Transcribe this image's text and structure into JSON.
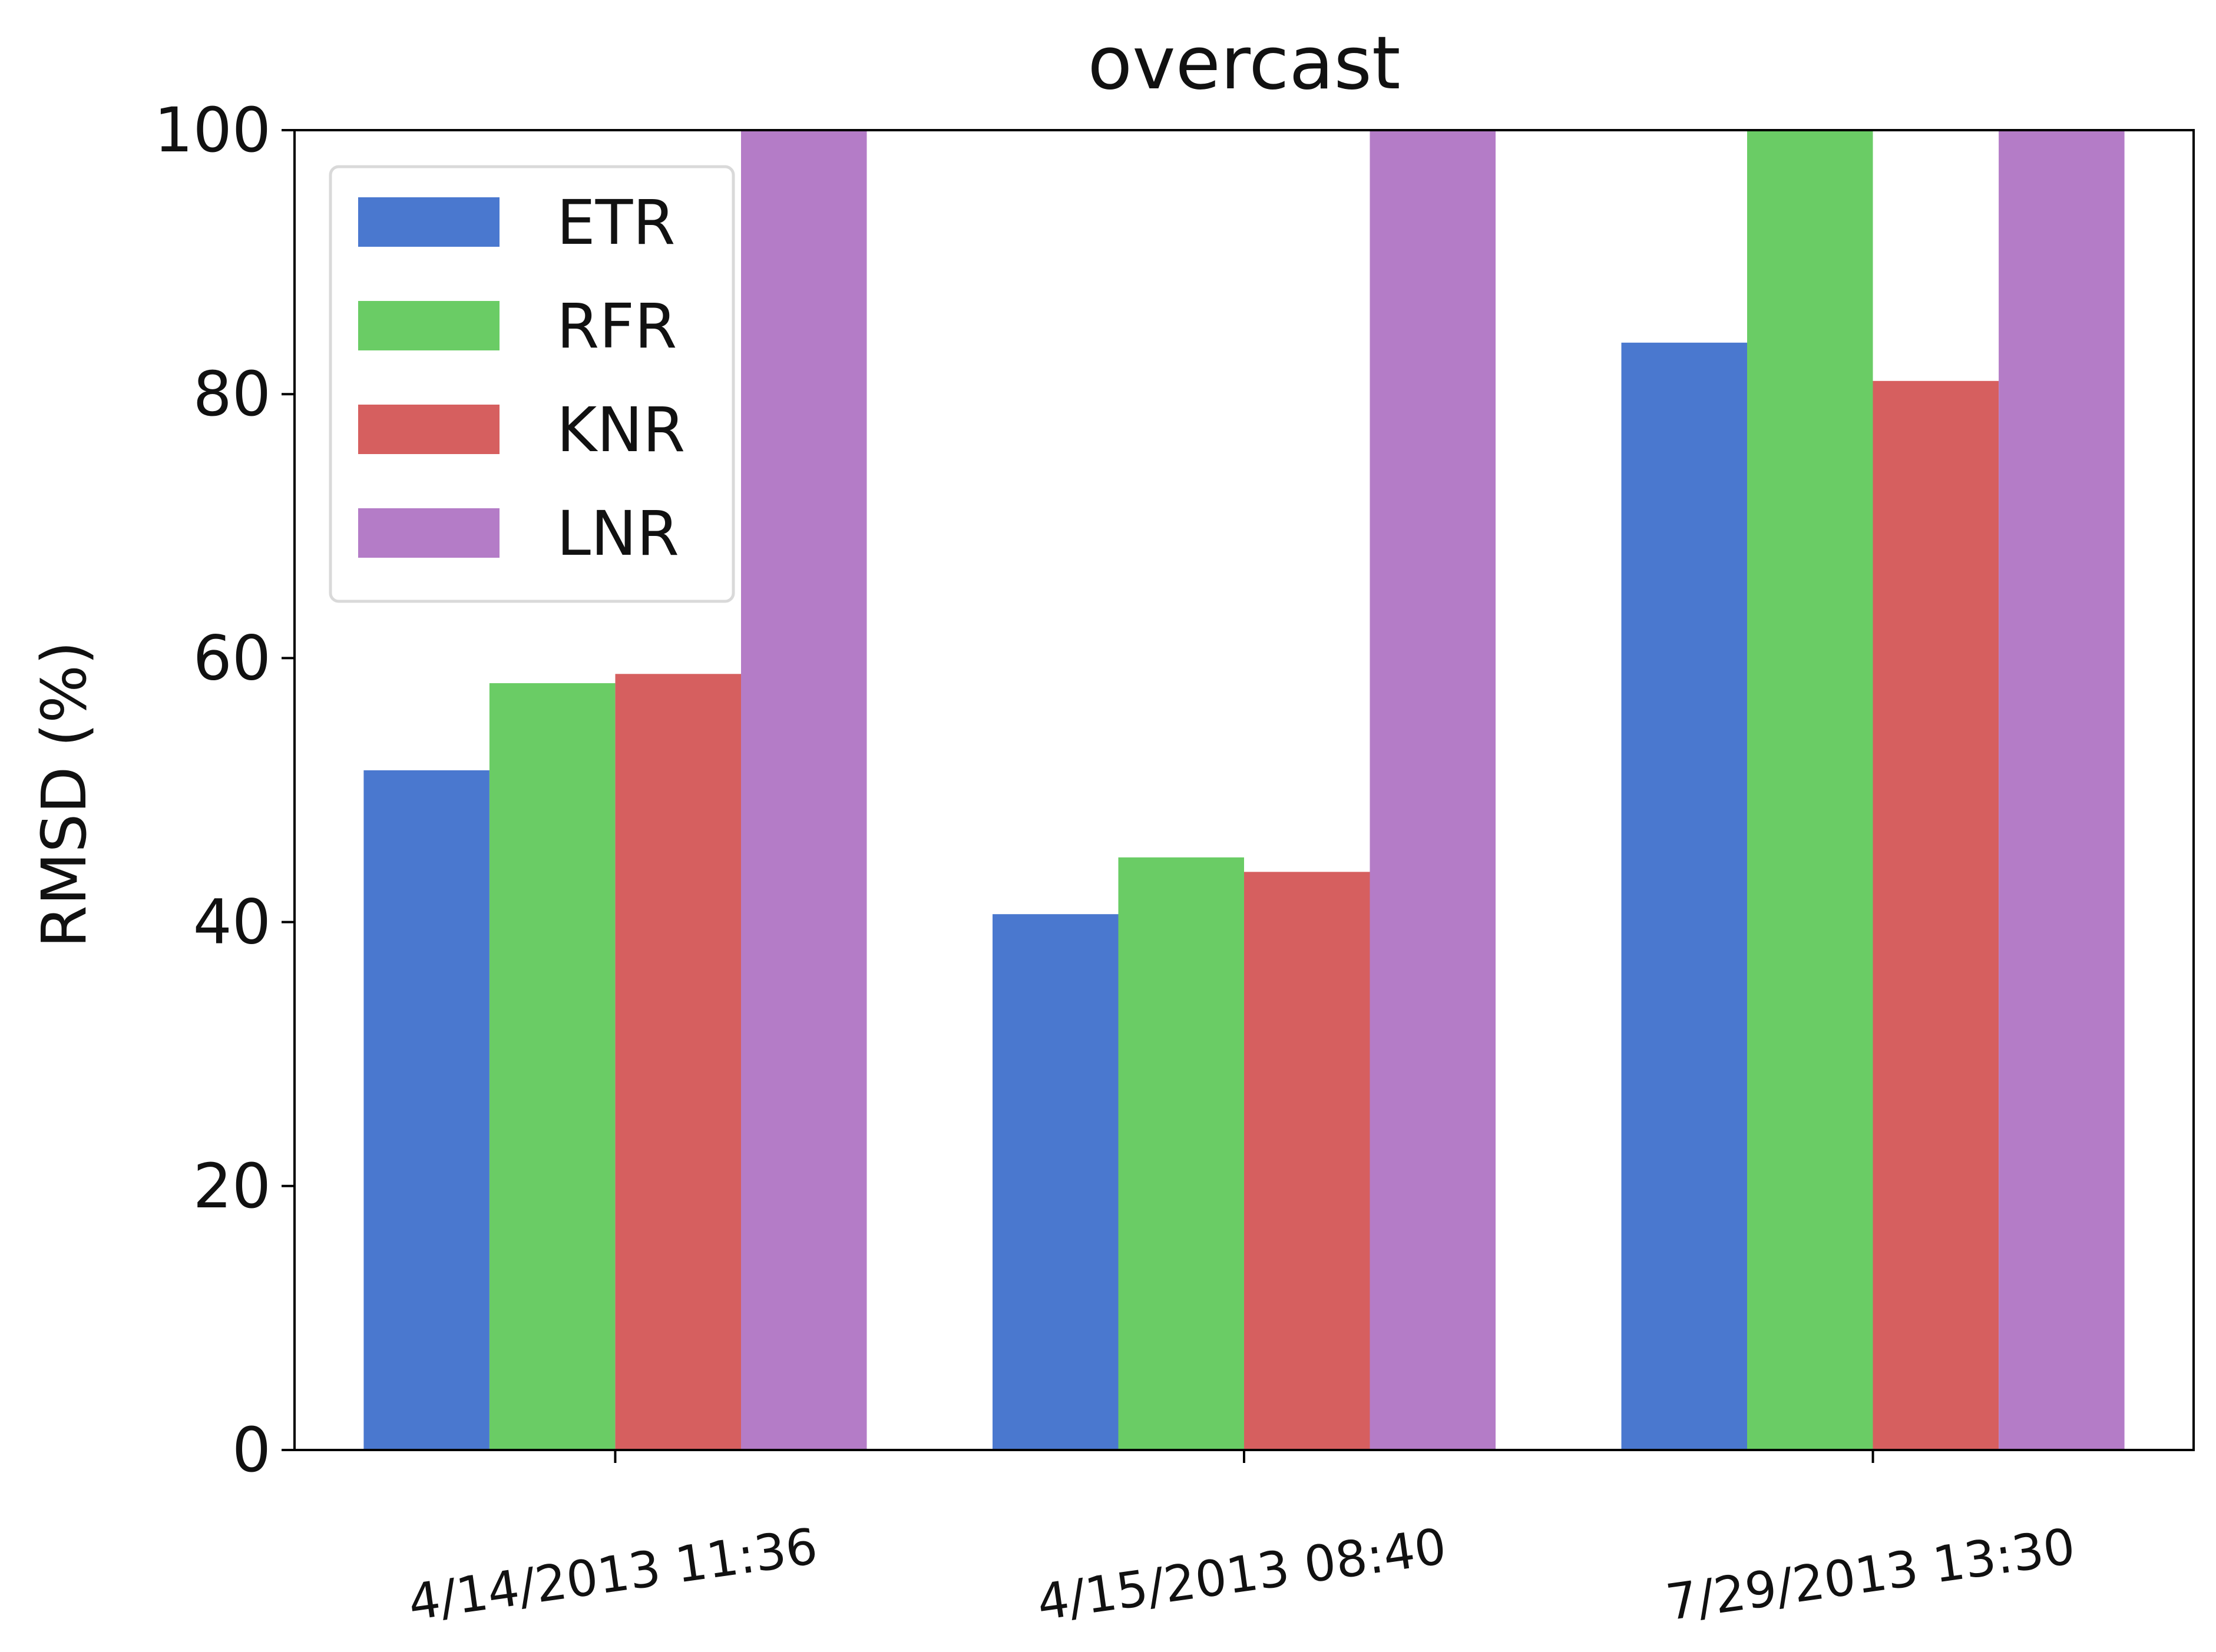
{
  "chart_data": {
    "type": "bar",
    "title": "overcast",
    "xlabel": "",
    "ylabel": "RMSD (%)",
    "ylim": [
      0,
      100
    ],
    "yticks": [
      "0",
      "20",
      "40",
      "60",
      "80",
      "100"
    ],
    "categories": [
      "4/14/2013 11:36",
      "4/15/2013 08:40",
      "7/29/2013 13:30"
    ],
    "series": [
      {
        "name": "ETR",
        "color": "#4a78cf",
        "values": [
          51.5,
          40.6,
          83.9
        ]
      },
      {
        "name": "RFR",
        "color": "#6acc65",
        "values": [
          58.1,
          44.9,
          100
        ]
      },
      {
        "name": "KNR",
        "color": "#d65f5f",
        "values": [
          58.8,
          43.8,
          81.0
        ]
      },
      {
        "name": "LNR",
        "color": "#b47cc7",
        "values": [
          100,
          100,
          100
        ]
      }
    ],
    "legend_position": "top-left",
    "grid": false
  }
}
